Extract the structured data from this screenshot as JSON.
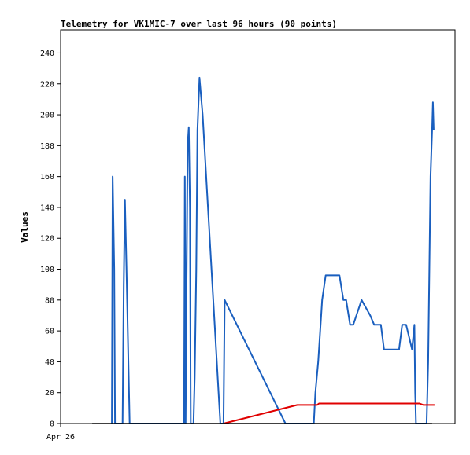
{
  "chart_data": {
    "type": "line",
    "title": "Telemetry for VK1MIC-7 over last 96 hours (90 points)",
    "xlabel": "",
    "ylabel": "Values",
    "x_tick_labels": [
      "Apr 26"
    ],
    "ylim": [
      0,
      255
    ],
    "y_ticks": [
      0,
      20,
      40,
      60,
      80,
      100,
      120,
      140,
      160,
      180,
      200,
      220,
      240
    ],
    "xlim": [
      0,
      100
    ],
    "grid": false,
    "legend": "none",
    "series": [
      {
        "color": "#1a5fbf",
        "points": [
          [
            13.0,
            0
          ],
          [
            13.2,
            160
          ],
          [
            13.6,
            100
          ],
          [
            13.8,
            0
          ],
          [
            15.7,
            0
          ],
          [
            16.0,
            90
          ],
          [
            16.3,
            145
          ],
          [
            16.7,
            100
          ],
          [
            17.5,
            0
          ],
          [
            31.3,
            0
          ],
          [
            31.5,
            160
          ],
          [
            31.7,
            0
          ],
          [
            31.9,
            80
          ],
          [
            32.2,
            180
          ],
          [
            32.5,
            192
          ],
          [
            32.8,
            140
          ],
          [
            33.0,
            0
          ],
          [
            33.7,
            0
          ],
          [
            34.0,
            30
          ],
          [
            34.4,
            100
          ],
          [
            34.7,
            190
          ],
          [
            35.2,
            224
          ],
          [
            36.0,
            200
          ],
          [
            40.5,
            0
          ],
          [
            41.3,
            0
          ],
          [
            41.6,
            80
          ],
          [
            57.0,
            0
          ],
          [
            62.0,
            0
          ],
          [
            64.2,
            0
          ],
          [
            64.6,
            20
          ],
          [
            65.3,
            40
          ],
          [
            66.3,
            80
          ],
          [
            67.2,
            96
          ],
          [
            70.0,
            96
          ],
          [
            70.7,
            96
          ],
          [
            71.7,
            80
          ],
          [
            72.4,
            80
          ],
          [
            73.4,
            64
          ],
          [
            74.2,
            64
          ],
          [
            76.3,
            80
          ],
          [
            78.5,
            70
          ],
          [
            79.5,
            64
          ],
          [
            81.2,
            64
          ],
          [
            82.0,
            48
          ],
          [
            85.8,
            48
          ],
          [
            86.6,
            64
          ],
          [
            87.6,
            64
          ],
          [
            89.1,
            48
          ],
          [
            89.7,
            64
          ],
          [
            89.9,
            20
          ],
          [
            90.1,
            0
          ],
          [
            92.8,
            0
          ],
          [
            93.2,
            40
          ],
          [
            93.5,
            100
          ],
          [
            93.8,
            160
          ],
          [
            94.2,
            190
          ],
          [
            94.4,
            208
          ],
          [
            94.6,
            190
          ]
        ]
      },
      {
        "color": "#e00000",
        "points": [
          [
            41.3,
            0
          ],
          [
            60.0,
            12
          ],
          [
            65.0,
            12
          ],
          [
            65.5,
            13
          ],
          [
            70.0,
            13
          ],
          [
            80.0,
            13
          ],
          [
            91.0,
            13
          ],
          [
            92.0,
            12
          ],
          [
            94.8,
            12
          ]
        ]
      },
      {
        "color": "#000000",
        "points": [
          [
            8.0,
            0
          ],
          [
            94.2,
            0
          ]
        ]
      }
    ]
  }
}
